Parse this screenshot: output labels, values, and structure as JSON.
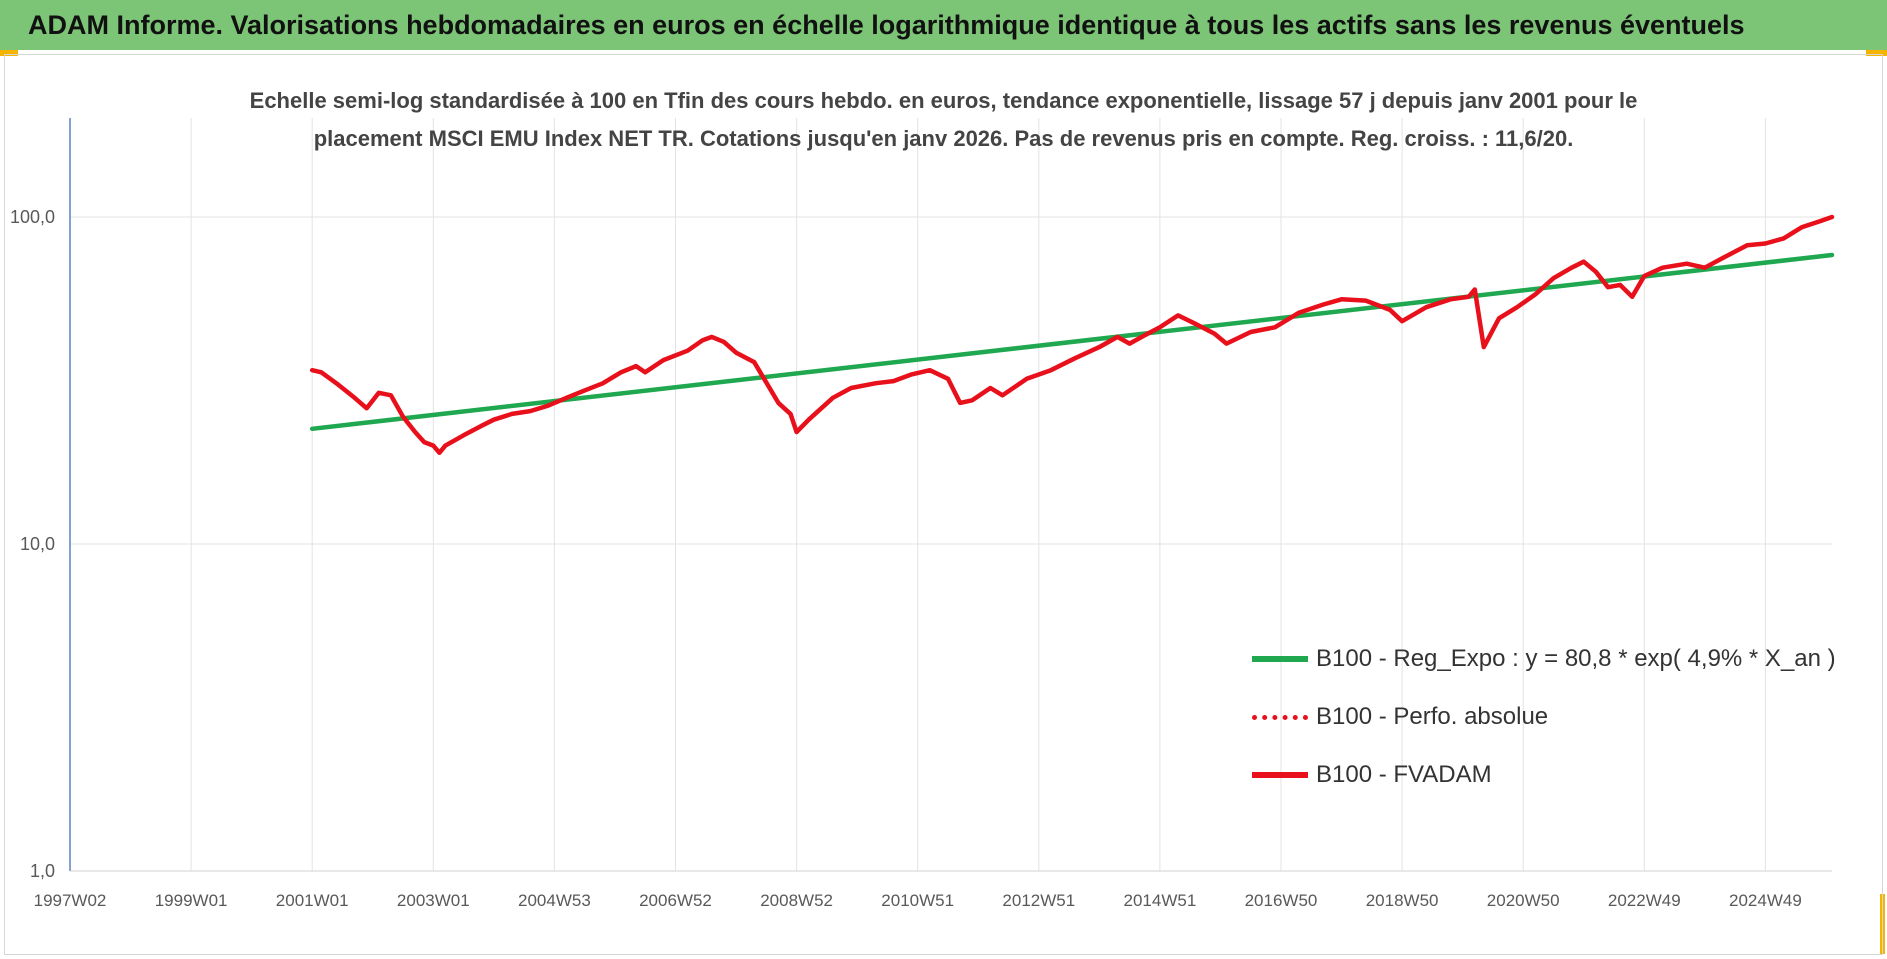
{
  "banner": {
    "title": "ADAM Informe. Valorisations hebdomadaires en euros en échelle logarithmique identique à tous les actifs sans les revenus éventuels"
  },
  "chart_data": {
    "type": "line",
    "title_lines": [
      "Echelle semi-log standardisée à 100 en Tfin des cours hebdo. en euros, tendance exponentielle, lissage 57 j depuis janv 2001 pour le",
      "placement MSCI EMU Index NET TR. Cotations jusqu'en janv 2026. Pas de revenus pris en compte. Reg. croiss. : 11,6/20."
    ],
    "y_scale": "log",
    "ylim": [
      1,
      200
    ],
    "yticks": [
      {
        "value": 1,
        "label": "1,0"
      },
      {
        "value": 10,
        "label": "10,0"
      },
      {
        "value": 100,
        "label": "100,0"
      }
    ],
    "xlim": [
      1997.0,
      2026.1
    ],
    "xticks": [
      {
        "value": 1997.0,
        "label": "1997W02"
      },
      {
        "value": 1999.0,
        "label": "1999W01"
      },
      {
        "value": 2001.0,
        "label": "2001W01"
      },
      {
        "value": 2003.0,
        "label": "2003W01"
      },
      {
        "value": 2005.0,
        "label": "2004W53"
      },
      {
        "value": 2007.0,
        "label": "2006W52"
      },
      {
        "value": 2009.0,
        "label": "2008W52"
      },
      {
        "value": 2011.0,
        "label": "2010W51"
      },
      {
        "value": 2013.0,
        "label": "2012W51"
      },
      {
        "value": 2015.0,
        "label": "2014W51"
      },
      {
        "value": 2017.0,
        "label": "2016W50"
      },
      {
        "value": 2019.0,
        "label": "2018W50"
      },
      {
        "value": 2021.0,
        "label": "2020W50"
      },
      {
        "value": 2023.0,
        "label": "2022W49"
      },
      {
        "value": 2025.0,
        "label": "2024W49"
      }
    ],
    "grid": true,
    "legend_position": "right",
    "series": [
      {
        "name": "B100 - Reg_Expo : y = 80,8 * exp( 4,9% * X_an )",
        "color": "#1fa84f",
        "style": "solid",
        "x": [
          2001.0,
          2026.1
        ],
        "y": [
          22.5,
          76.5
        ]
      },
      {
        "name": "B100 - Perfo. absolue",
        "color": "#e8101a",
        "style": "dotted",
        "x": [],
        "y": []
      },
      {
        "name": "B100 - FVADAM",
        "color": "#e8101a",
        "style": "solid",
        "x": [
          2001.0,
          2001.15,
          2001.4,
          2001.7,
          2001.9,
          2002.1,
          2002.3,
          2002.5,
          2002.7,
          2002.85,
          2003.0,
          2003.1,
          2003.2,
          2003.5,
          2003.8,
          2004.0,
          2004.3,
          2004.6,
          2004.9,
          2005.2,
          2005.5,
          2005.8,
          2006.1,
          2006.35,
          2006.5,
          2006.8,
          2007.2,
          2007.45,
          2007.6,
          2007.8,
          2008.0,
          2008.3,
          2008.7,
          2008.9,
          2009.0,
          2009.2,
          2009.6,
          2009.9,
          2010.3,
          2010.6,
          2010.9,
          2011.2,
          2011.5,
          2011.7,
          2011.9,
          2012.2,
          2012.4,
          2012.8,
          2013.2,
          2013.6,
          2014.0,
          2014.3,
          2014.5,
          2014.8,
          2015.0,
          2015.3,
          2015.6,
          2015.9,
          2016.1,
          2016.5,
          2016.9,
          2017.3,
          2017.7,
          2018.0,
          2018.4,
          2018.8,
          2019.0,
          2019.4,
          2019.8,
          2020.1,
          2020.2,
          2020.35,
          2020.6,
          2020.9,
          2021.2,
          2021.5,
          2021.8,
          2022.0,
          2022.2,
          2022.4,
          2022.6,
          2022.8,
          2023.0,
          2023.3,
          2023.7,
          2024.0,
          2024.3,
          2024.7,
          2025.0,
          2025.3,
          2025.6,
          2025.9,
          2026.1
        ],
        "y": [
          34.0,
          33.5,
          31.0,
          28.0,
          26.0,
          29.0,
          28.5,
          24.5,
          22.0,
          20.5,
          20.0,
          19.0,
          20.0,
          21.5,
          23.0,
          24.0,
          25.0,
          25.5,
          26.5,
          28.0,
          29.5,
          31.0,
          33.5,
          35.0,
          33.5,
          36.5,
          39.0,
          42.0,
          43.0,
          41.5,
          38.5,
          36.0,
          27.0,
          25.0,
          22.0,
          24.0,
          28.0,
          30.0,
          31.0,
          31.5,
          33.0,
          34.0,
          32.0,
          27.0,
          27.5,
          30.0,
          28.5,
          32.0,
          34.0,
          37.0,
          40.0,
          43.0,
          41.0,
          44.0,
          46.0,
          50.0,
          47.0,
          44.0,
          41.0,
          44.5,
          46.0,
          51.0,
          54.0,
          56.0,
          55.5,
          52.0,
          48.0,
          53.0,
          56.0,
          57.0,
          60.0,
          40.0,
          49.0,
          53.0,
          58.0,
          65.0,
          70.0,
          73.0,
          68.0,
          61.0,
          62.0,
          57.0,
          66.0,
          70.0,
          72.0,
          70.0,
          75.0,
          82.0,
          83.0,
          86.0,
          93.0,
          97.0,
          100.0
        ]
      }
    ]
  }
}
